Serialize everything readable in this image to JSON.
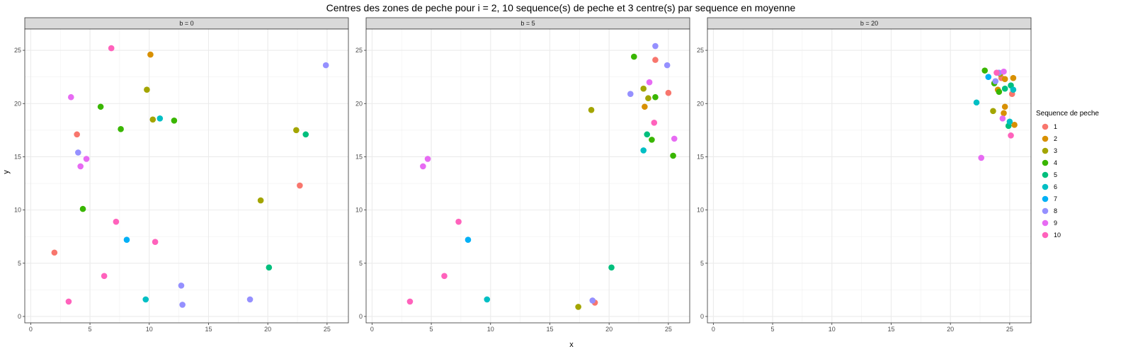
{
  "chart_data": {
    "type": "scatter",
    "title": "Centres des zones de peche pour i = 2, 10 sequence(s) de peche et 3 centre(s) par sequence en moyenne",
    "xlabel": "x",
    "ylabel": "y",
    "xlim": [
      -0.5,
      26.8
    ],
    "ylim": [
      -0.6,
      27.0
    ],
    "xticks": [
      0,
      5,
      10,
      15,
      20,
      25
    ],
    "yticks": [
      0,
      5,
      10,
      15,
      20,
      25
    ],
    "grid": true,
    "legend": {
      "title": "Sequence de peche",
      "placement": "right",
      "entries": [
        "1",
        "2",
        "3",
        "4",
        "5",
        "6",
        "7",
        "8",
        "9",
        "10"
      ]
    },
    "colors": [
      "#F8766D",
      "#D89000",
      "#A3A500",
      "#39B600",
      "#00BF7D",
      "#00BFC4",
      "#00B0F6",
      "#9590FF",
      "#E76BF3",
      "#FF62BC"
    ],
    "panels": [
      {
        "label": "b = 0",
        "points": [
          {
            "s": 1,
            "x": 2.0,
            "y": 6.0
          },
          {
            "s": 1,
            "x": 3.9,
            "y": 17.1
          },
          {
            "s": 1,
            "x": 22.7,
            "y": 12.3
          },
          {
            "s": 2,
            "x": 10.1,
            "y": 24.6
          },
          {
            "s": 3,
            "x": 9.8,
            "y": 21.3
          },
          {
            "s": 3,
            "x": 10.3,
            "y": 18.5
          },
          {
            "s": 3,
            "x": 22.4,
            "y": 17.5
          },
          {
            "s": 3,
            "x": 19.4,
            "y": 10.9
          },
          {
            "s": 4,
            "x": 5.9,
            "y": 19.7
          },
          {
            "s": 4,
            "x": 7.6,
            "y": 17.6
          },
          {
            "s": 4,
            "x": 12.1,
            "y": 18.4
          },
          {
            "s": 4,
            "x": 4.4,
            "y": 10.1
          },
          {
            "s": 5,
            "x": 23.2,
            "y": 17.1
          },
          {
            "s": 5,
            "x": 20.1,
            "y": 4.6
          },
          {
            "s": 6,
            "x": 10.9,
            "y": 18.6
          },
          {
            "s": 6,
            "x": 9.7,
            "y": 1.6
          },
          {
            "s": 7,
            "x": 8.1,
            "y": 7.2
          },
          {
            "s": 8,
            "x": 24.9,
            "y": 23.6
          },
          {
            "s": 8,
            "x": 4.0,
            "y": 15.4
          },
          {
            "s": 8,
            "x": 12.7,
            "y": 2.9
          },
          {
            "s": 8,
            "x": 12.8,
            "y": 1.1
          },
          {
            "s": 8,
            "x": 18.5,
            "y": 1.6
          },
          {
            "s": 9,
            "x": 3.4,
            "y": 20.6
          },
          {
            "s": 9,
            "x": 4.7,
            "y": 14.8
          },
          {
            "s": 9,
            "x": 4.2,
            "y": 14.1
          },
          {
            "s": 10,
            "x": 6.8,
            "y": 25.2
          },
          {
            "s": 10,
            "x": 7.2,
            "y": 8.9
          },
          {
            "s": 10,
            "x": 10.5,
            "y": 7.0
          },
          {
            "s": 10,
            "x": 6.2,
            "y": 3.8
          },
          {
            "s": 10,
            "x": 3.2,
            "y": 1.4
          }
        ]
      },
      {
        "label": "b = 5",
        "points": [
          {
            "s": 1,
            "x": 23.9,
            "y": 24.1
          },
          {
            "s": 1,
            "x": 25.0,
            "y": 21.0
          },
          {
            "s": 1,
            "x": 18.8,
            "y": 1.3
          },
          {
            "s": 2,
            "x": 23.0,
            "y": 19.7
          },
          {
            "s": 3,
            "x": 22.9,
            "y": 21.4
          },
          {
            "s": 3,
            "x": 23.3,
            "y": 20.5
          },
          {
            "s": 3,
            "x": 18.5,
            "y": 19.4
          },
          {
            "s": 3,
            "x": 17.4,
            "y": 0.9
          },
          {
            "s": 4,
            "x": 22.1,
            "y": 24.4
          },
          {
            "s": 4,
            "x": 23.9,
            "y": 20.6
          },
          {
            "s": 4,
            "x": 23.6,
            "y": 16.6
          },
          {
            "s": 4,
            "x": 25.4,
            "y": 15.1
          },
          {
            "s": 5,
            "x": 23.2,
            "y": 17.1
          },
          {
            "s": 5,
            "x": 20.2,
            "y": 4.6
          },
          {
            "s": 6,
            "x": 22.9,
            "y": 15.6
          },
          {
            "s": 6,
            "x": 9.7,
            "y": 1.6
          },
          {
            "s": 7,
            "x": 8.1,
            "y": 7.2
          },
          {
            "s": 8,
            "x": 23.9,
            "y": 25.4
          },
          {
            "s": 8,
            "x": 24.9,
            "y": 23.6
          },
          {
            "s": 8,
            "x": 21.8,
            "y": 20.9
          },
          {
            "s": 8,
            "x": 18.6,
            "y": 1.5
          },
          {
            "s": 9,
            "x": 23.4,
            "y": 22.0
          },
          {
            "s": 9,
            "x": 25.5,
            "y": 16.7
          },
          {
            "s": 9,
            "x": 4.7,
            "y": 14.8
          },
          {
            "s": 9,
            "x": 4.3,
            "y": 14.1
          },
          {
            "s": 10,
            "x": 23.8,
            "y": 18.2
          },
          {
            "s": 10,
            "x": 7.3,
            "y": 8.9
          },
          {
            "s": 10,
            "x": 6.1,
            "y": 3.8
          },
          {
            "s": 10,
            "x": 3.2,
            "y": 1.4
          }
        ]
      },
      {
        "label": "b = 20",
        "points": [
          {
            "s": 1,
            "x": 25.2,
            "y": 20.9
          },
          {
            "s": 1,
            "x": 24.3,
            "y": 22.4
          },
          {
            "s": 2,
            "x": 24.0,
            "y": 21.3
          },
          {
            "s": 2,
            "x": 24.6,
            "y": 22.3
          },
          {
            "s": 2,
            "x": 25.3,
            "y": 22.4
          },
          {
            "s": 2,
            "x": 24.5,
            "y": 19.1
          },
          {
            "s": 2,
            "x": 24.6,
            "y": 19.7
          },
          {
            "s": 2,
            "x": 25.4,
            "y": 18.0
          },
          {
            "s": 3,
            "x": 23.6,
            "y": 19.3
          },
          {
            "s": 3,
            "x": 24.2,
            "y": 22.8
          },
          {
            "s": 4,
            "x": 22.9,
            "y": 23.1
          },
          {
            "s": 4,
            "x": 23.7,
            "y": 21.9
          },
          {
            "s": 4,
            "x": 24.1,
            "y": 21.1
          },
          {
            "s": 5,
            "x": 24.6,
            "y": 21.4
          },
          {
            "s": 5,
            "x": 25.1,
            "y": 21.7
          },
          {
            "s": 5,
            "x": 24.9,
            "y": 17.9
          },
          {
            "s": 6,
            "x": 22.2,
            "y": 20.1
          },
          {
            "s": 6,
            "x": 25.3,
            "y": 21.3
          },
          {
            "s": 6,
            "x": 25.0,
            "y": 18.3
          },
          {
            "s": 7,
            "x": 23.2,
            "y": 22.5
          },
          {
            "s": 8,
            "x": 23.8,
            "y": 22.1
          },
          {
            "s": 8,
            "x": 24.1,
            "y": 22.9
          },
          {
            "s": 9,
            "x": 24.5,
            "y": 23.0
          },
          {
            "s": 9,
            "x": 24.4,
            "y": 18.6
          },
          {
            "s": 9,
            "x": 22.6,
            "y": 14.9
          },
          {
            "s": 10,
            "x": 23.9,
            "y": 22.9
          },
          {
            "s": 10,
            "x": 25.1,
            "y": 17.0
          }
        ]
      }
    ]
  }
}
